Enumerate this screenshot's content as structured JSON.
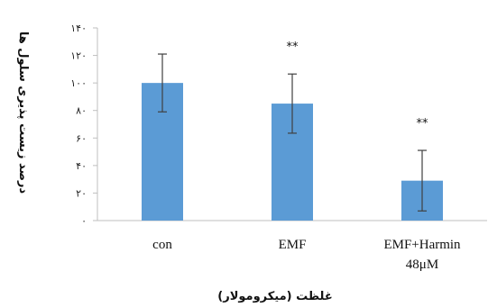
{
  "chart_data": {
    "type": "bar",
    "title": "",
    "xlabel": "غلظت (میکرومولار)",
    "ylabel": "درصد زیست پذیری سلول ها",
    "categories": [
      {
        "line1": "con",
        "line2": ""
      },
      {
        "line1": "EMF",
        "line2": ""
      },
      {
        "line1": "EMF+Harmin",
        "line2": "48μM"
      }
    ],
    "values": [
      100,
      85,
      29
    ],
    "error": [
      21,
      21.5,
      22
    ],
    "annotations": [
      "",
      "**",
      "**"
    ],
    "ylim": [
      0,
      140
    ],
    "yticks": [
      0,
      20,
      40,
      60,
      80,
      100,
      120,
      140
    ],
    "yticks_labels": [
      "٠",
      "٢٠",
      "۴٠",
      "۶٠",
      "٨٠",
      "١٠٠",
      "١٢٠",
      "١۴٠"
    ],
    "grid": false,
    "bar_color": "#5b9bd5"
  }
}
